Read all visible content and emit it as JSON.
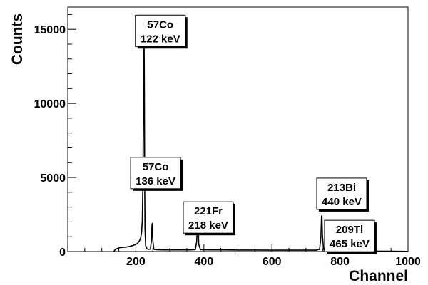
{
  "chart_data": {
    "type": "line",
    "title": "",
    "xlabel": "Channel",
    "ylabel": "Counts",
    "xlim": [
      0,
      1000
    ],
    "ylim": [
      0,
      16500
    ],
    "x_ticks": [
      200,
      400,
      600,
      800,
      1000
    ],
    "y_ticks": [
      0,
      5000,
      10000,
      15000
    ],
    "grid": false,
    "legend": "none",
    "colors": {
      "line": "#000000",
      "axis": "#000000",
      "box_fill": "#ffffff",
      "box_shadow": "#000000"
    },
    "series": [
      {
        "name": "",
        "points": [
          [
            135,
            0
          ],
          [
            140,
            150
          ],
          [
            150,
            250
          ],
          [
            160,
            280
          ],
          [
            170,
            300
          ],
          [
            180,
            330
          ],
          [
            190,
            400
          ],
          [
            200,
            480
          ],
          [
            205,
            560
          ],
          [
            210,
            700
          ],
          [
            214,
            900
          ],
          [
            217,
            1300
          ],
          [
            219,
            2100
          ],
          [
            221,
            5000
          ],
          [
            223,
            12000
          ],
          [
            224,
            15700
          ],
          [
            225,
            12000
          ],
          [
            226,
            5000
          ],
          [
            227,
            1500
          ],
          [
            229,
            400
          ],
          [
            233,
            180
          ],
          [
            238,
            150
          ],
          [
            243,
            170
          ],
          [
            246,
            800
          ],
          [
            247.5,
            1800
          ],
          [
            248.5,
            1900
          ],
          [
            250,
            700
          ],
          [
            253,
            150
          ],
          [
            260,
            120
          ],
          [
            280,
            110
          ],
          [
            300,
            110
          ],
          [
            330,
            110
          ],
          [
            360,
            110
          ],
          [
            375,
            130
          ],
          [
            379,
            700
          ],
          [
            381,
            2000
          ],
          [
            382,
            2700
          ],
          [
            383.5,
            1900
          ],
          [
            385,
            500
          ],
          [
            390,
            120
          ],
          [
            420,
            110
          ],
          [
            450,
            110
          ],
          [
            500,
            100
          ],
          [
            550,
            100
          ],
          [
            600,
            90
          ],
          [
            650,
            90
          ],
          [
            700,
            90
          ],
          [
            730,
            90
          ],
          [
            740,
            150
          ],
          [
            744,
            1000
          ],
          [
            746,
            2400
          ],
          [
            747,
            2400
          ],
          [
            748.5,
            1100
          ],
          [
            752,
            120
          ],
          [
            760,
            80
          ],
          [
            790,
            70
          ],
          [
            800,
            60
          ],
          [
            850,
            40
          ],
          [
            900,
            30
          ],
          [
            950,
            20
          ],
          [
            1000,
            10
          ]
        ]
      }
    ],
    "annotations": [
      {
        "line1": "57Co",
        "line2": "122 keV",
        "x": 272,
        "y": 14900
      },
      {
        "line1": "57Co",
        "line2": "136 keV",
        "x": 258,
        "y": 5300
      },
      {
        "line1": "221Fr",
        "line2": "218 keV",
        "x": 413,
        "y": 2300
      },
      {
        "line1": "213Bi",
        "line2": "440 keV",
        "x": 805,
        "y": 3900
      },
      {
        "line1": "209Tl",
        "line2": "465 keV",
        "x": 828,
        "y": 1050
      }
    ]
  }
}
